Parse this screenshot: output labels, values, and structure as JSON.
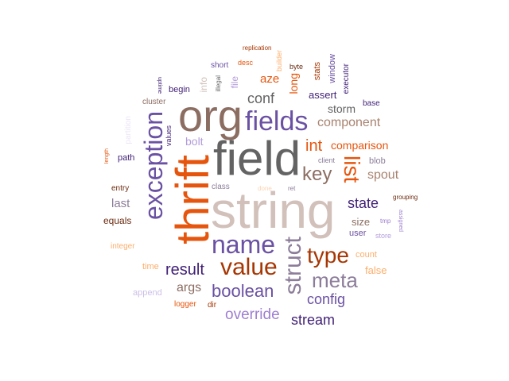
{
  "words": {
    "string": "string",
    "field": "field",
    "org": "org",
    "thrift": "thrift",
    "exception": "exception",
    "fields": "fields",
    "name": "name",
    "value": "value",
    "struct": "struct",
    "type": "type",
    "meta": "meta",
    "list": "list",
    "key": "key",
    "int": "int",
    "boolean": "boolean",
    "result": "result",
    "override": "override",
    "config": "config",
    "stream": "stream",
    "state": "state",
    "conf": "conf",
    "component": "component",
    "comparison": "comparison",
    "spout": "spout",
    "storm": "storm",
    "args": "args",
    "last": "last",
    "bolt": "bolt",
    "aze": "aze",
    "long": "long",
    "assert": "assert",
    "size": "size",
    "false": "false",
    "stats": "stats",
    "window": "window",
    "file": "file",
    "info": "info",
    "equals": "equals",
    "path": "path",
    "blob": "blob",
    "executor": "executor",
    "base": "base",
    "cluster": "cluster",
    "begin": "begin",
    "short": "short",
    "desc": "desc",
    "builder": "builder",
    "byte": "byte",
    "replication": "replication",
    "illegal": "illegal",
    "uptime": "uptime",
    "values": "values",
    "partition": "partition",
    "length": "length",
    "entry": "entry",
    "integer": "integer",
    "time": "time",
    "append": "append",
    "logger": "logger",
    "dir": "dir",
    "user": "user",
    "count": "count",
    "store": "store",
    "tmp": "tmp",
    "assigned": "assigned",
    "grouping": "grouping",
    "client": "client",
    "class": "class",
    "done": "done",
    "ret": "ret"
  },
  "colors": {
    "gray_dark": "#636363",
    "taupe": "#d2c1bb",
    "brown_gray": "#8c6d62",
    "orange_red": "#e6550d",
    "purple": "#6a51a3",
    "dark_purple": "#3f1f75",
    "rust": "#a63603",
    "lavender": "#9e7fd1",
    "peach": "#fdae6b"
  }
}
